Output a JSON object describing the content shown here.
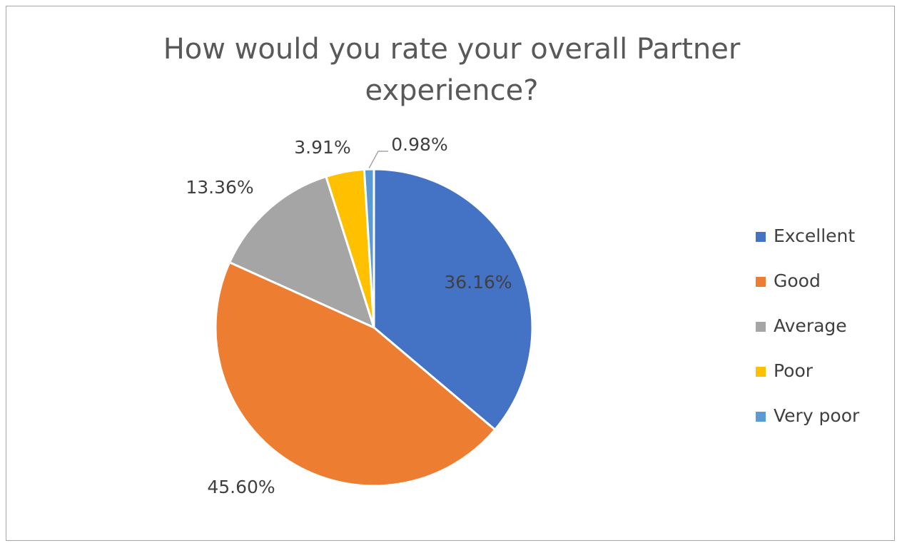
{
  "chart_data": {
    "type": "pie",
    "title": "How would you rate your overall Partner experience?",
    "categories": [
      "Excellent",
      "Good",
      "Average",
      "Poor",
      "Very poor"
    ],
    "values": [
      36.16,
      45.6,
      13.36,
      3.91,
      0.98
    ],
    "value_labels": [
      "36.16%",
      "45.60%",
      "13.36%",
      "3.91%",
      "0.98%"
    ],
    "colors": [
      "#4472c4",
      "#ed7d31",
      "#a5a5a5",
      "#ffc000",
      "#5b9bd5"
    ],
    "legend": "right"
  }
}
